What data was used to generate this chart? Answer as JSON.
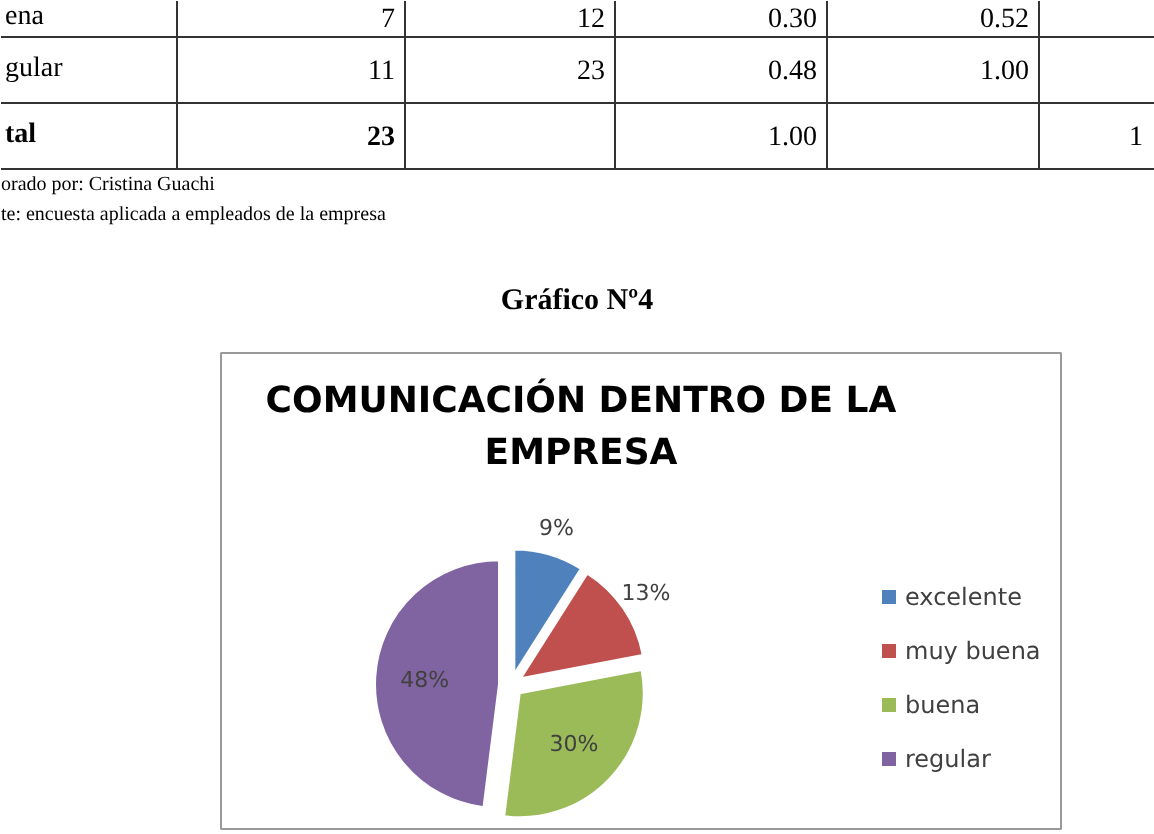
{
  "chart_data": {
    "type": "pie",
    "title": "COMUNICACIÓN DENTRO DE LA EMPRESA",
    "categories": [
      "excelente",
      "muy buena",
      "buena",
      "regular"
    ],
    "values": [
      9,
      13,
      30,
      48
    ],
    "colors": [
      "#4f81bd",
      "#c0504d",
      "#9bbb59",
      "#8064a2"
    ],
    "data_labels": true,
    "value_labels": [
      "9%",
      "13%",
      "30%",
      "48%"
    ],
    "legend": "right",
    "annotations": [
      "ena",
      "7",
      "12",
      "0.30",
      "0.52",
      "gular",
      "11",
      "23",
      "0.48",
      "1.00",
      "tal",
      "23",
      "1.00",
      "1",
      "orado por: Cristina Guachi",
      "te: encuesta aplicada a empleados de la empresa",
      "Gráfico Nº4"
    ]
  }
}
